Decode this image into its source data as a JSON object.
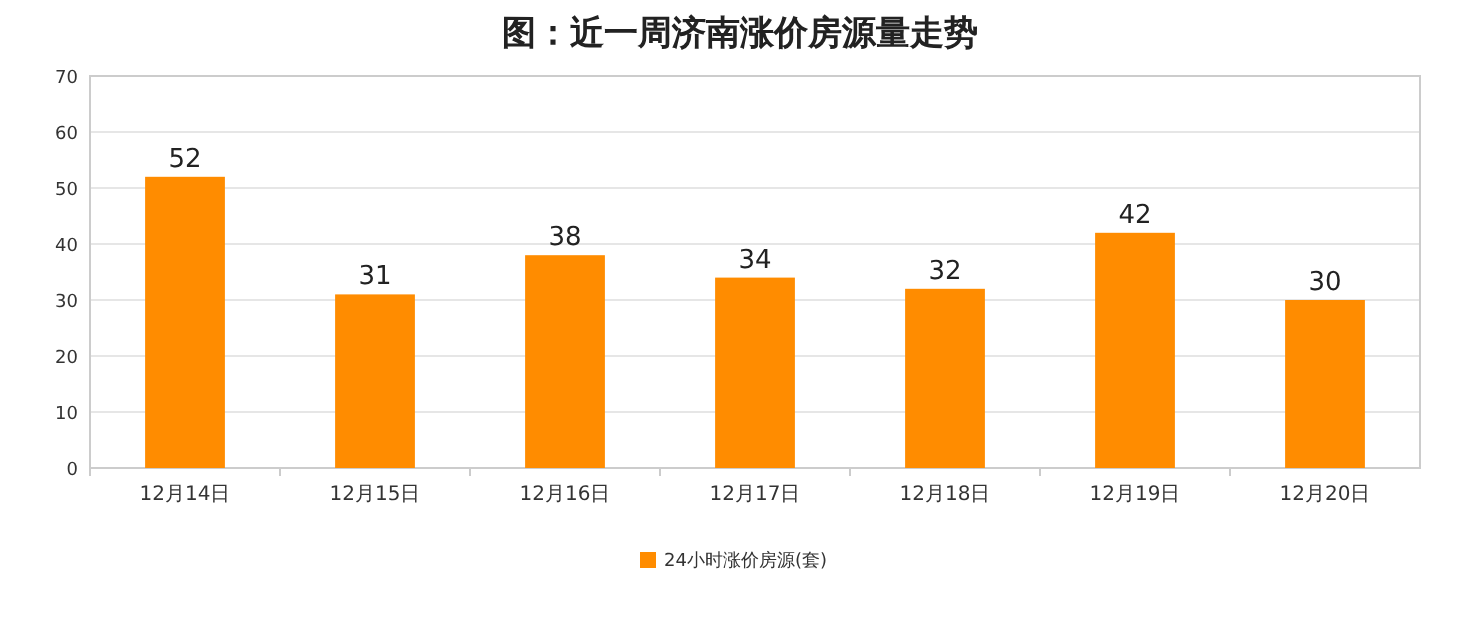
{
  "chart_data": {
    "type": "bar",
    "title": "图：近一周济南涨价房源量走势",
    "categories": [
      "12月14日",
      "12月15日",
      "12月16日",
      "12月17日",
      "12月18日",
      "12月19日",
      "12月20日"
    ],
    "series": [
      {
        "name": "24小时涨价房源(套)",
        "color": "#ff8c00",
        "values": [
          52,
          31,
          38,
          34,
          32,
          42,
          30
        ]
      }
    ],
    "ylim": [
      0,
      70
    ],
    "yticks": [
      0,
      10,
      20,
      30,
      40,
      50,
      60,
      70
    ],
    "grid": "y",
    "legend": "bottom",
    "data_labels": true
  }
}
